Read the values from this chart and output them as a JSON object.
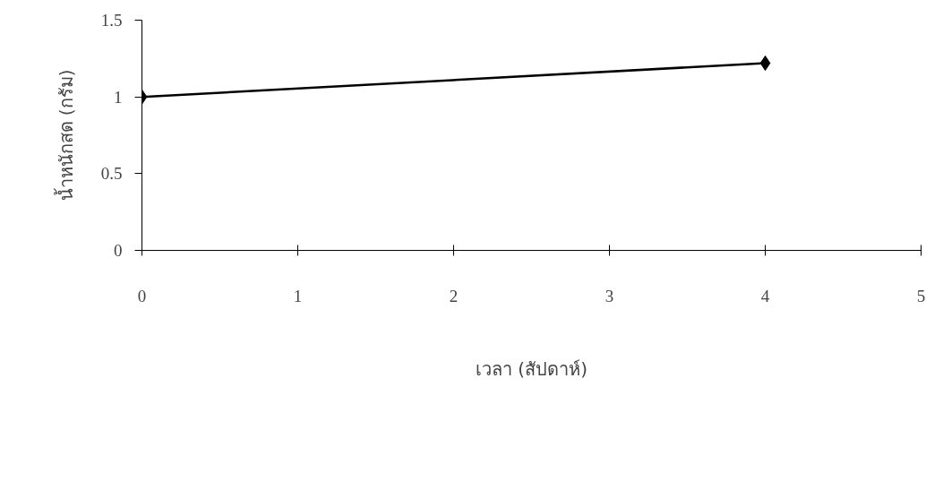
{
  "chart_data": {
    "type": "line",
    "xlabel": "เวลา (สัปดาห์)",
    "ylabel": "น้ำหนักสด (กรัม)",
    "x": [
      0,
      4
    ],
    "series": [
      {
        "color": "#000000",
        "values": [
          1,
          1.22
        ]
      }
    ],
    "xlim": [
      0,
      5
    ],
    "xticks": [
      0,
      1,
      2,
      3,
      4,
      5
    ],
    "ylim": [
      0,
      1.5
    ],
    "yticks": [
      0,
      0.5,
      1,
      1.5
    ],
    "marker": "diamond",
    "line_style": "solid",
    "grid": false
  }
}
